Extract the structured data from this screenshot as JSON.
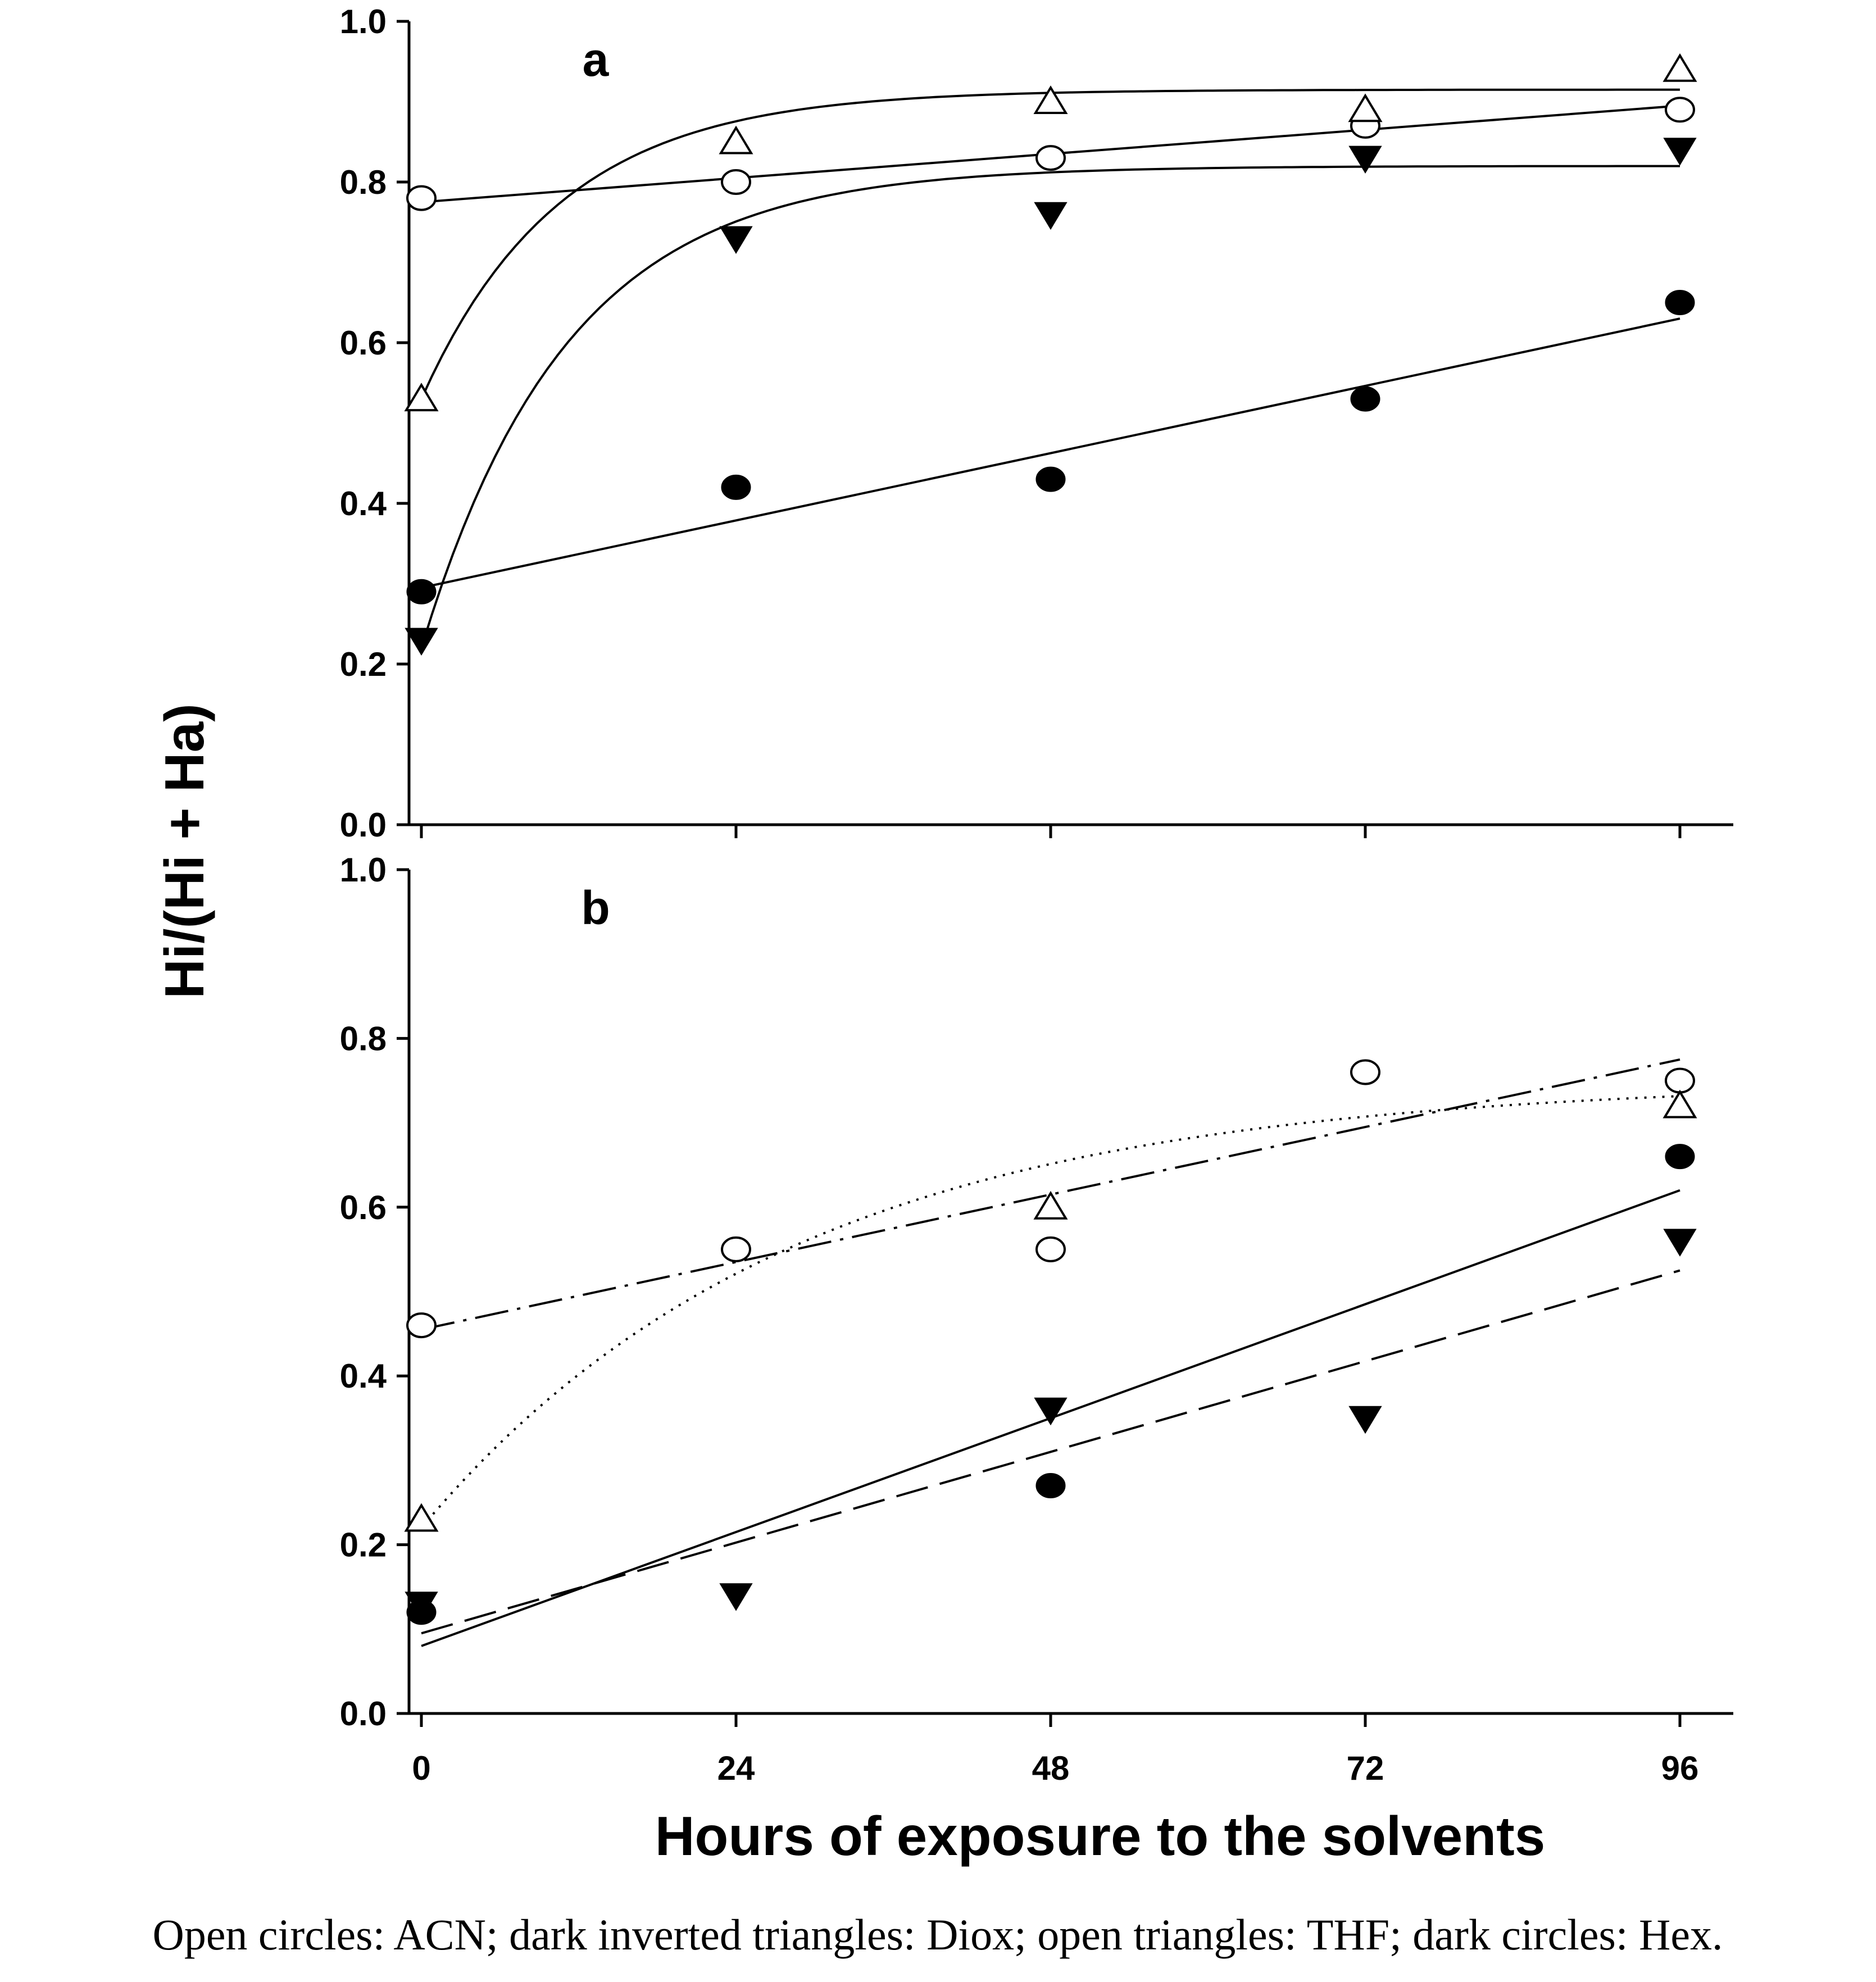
{
  "chart_data": [
    {
      "type": "scatter",
      "panel_label": "a",
      "xlabel": "Hours of exposure to the solvents",
      "ylabel": "Hi/(Hi + Ha)",
      "xlim": [
        -2,
        104
      ],
      "ylim": [
        0,
        1.0
      ],
      "x_ticks": [
        0,
        24,
        48,
        72,
        96
      ],
      "x_tick_labels": [
        "0",
        "24",
        "48",
        "72",
        "96"
      ],
      "y_ticks": [
        0.0,
        0.2,
        0.4,
        0.6,
        0.8,
        1.0
      ],
      "y_tick_labels": [
        "0.0",
        "0.2",
        "0.4",
        "0.6",
        "0.8",
        "1.0"
      ],
      "series": [
        {
          "name": "ACN",
          "marker": "open-circle",
          "x": [
            0,
            24,
            48,
            72,
            96
          ],
          "y": [
            0.78,
            0.8,
            0.83,
            0.87,
            0.89
          ],
          "fit": {
            "kind": "linear",
            "style": "solid",
            "x0": 0,
            "y0": 0.775,
            "x1": 96,
            "y1": 0.895
          }
        },
        {
          "name": "Diox",
          "marker": "dark-inverted-triangle",
          "x": [
            0,
            24,
            48,
            72,
            96
          ],
          "y": [
            0.23,
            0.73,
            0.76,
            0.83,
            0.84
          ],
          "fit": {
            "kind": "exp-rise",
            "style": "solid",
            "x_start": 0,
            "x_end": 96,
            "y0": 0.22,
            "ymax": 0.82,
            "k": 0.09
          }
        },
        {
          "name": "THF",
          "marker": "open-triangle",
          "x": [
            0,
            24,
            48,
            72,
            96
          ],
          "y": [
            0.53,
            0.85,
            0.9,
            0.89,
            0.94
          ],
          "fit": {
            "kind": "exp-rise",
            "style": "solid",
            "x_start": 0,
            "x_end": 96,
            "y0": 0.53,
            "ymax": 0.915,
            "k": 0.095
          }
        },
        {
          "name": "Hex",
          "marker": "dark-circle",
          "x": [
            0,
            24,
            48,
            72,
            96
          ],
          "y": [
            0.29,
            0.42,
            0.43,
            0.53,
            0.65
          ],
          "fit": {
            "kind": "linear",
            "style": "solid",
            "x0": 0,
            "y0": 0.295,
            "x1": 96,
            "y1": 0.63
          }
        }
      ]
    },
    {
      "type": "scatter",
      "panel_label": "b",
      "xlabel": "Hours of exposure to the solvents",
      "ylabel": "Hi/(Hi + Ha)",
      "xlim": [
        -2,
        104
      ],
      "ylim": [
        0,
        1.0
      ],
      "x_ticks": [
        0,
        24,
        48,
        72,
        96
      ],
      "x_tick_labels": [
        "0",
        "24",
        "48",
        "72",
        "96"
      ],
      "y_ticks": [
        0.0,
        0.2,
        0.4,
        0.6,
        0.8,
        1.0
      ],
      "y_tick_labels": [
        "0.0",
        "0.2",
        "0.4",
        "0.6",
        "0.8",
        "1.0"
      ],
      "series": [
        {
          "name": "ACN",
          "marker": "open-circle",
          "x": [
            0,
            24,
            48,
            72,
            96
          ],
          "y": [
            0.46,
            0.55,
            0.55,
            0.76,
            0.75
          ],
          "fit": {
            "kind": "linear",
            "style": "dash-dot",
            "x0": 0,
            "y0": 0.455,
            "x1": 96,
            "y1": 0.775
          }
        },
        {
          "name": "Diox",
          "marker": "dark-inverted-triangle",
          "x": [
            0,
            24,
            48,
            72,
            96
          ],
          "y": [
            0.13,
            0.14,
            0.36,
            0.35,
            0.56
          ],
          "fit": {
            "kind": "linear",
            "style": "long-dash",
            "x0": 0,
            "y0": 0.095,
            "x1": 96,
            "y1": 0.525
          }
        },
        {
          "name": "THF",
          "marker": "open-triangle",
          "x": [
            0,
            48,
            96
          ],
          "y": [
            0.23,
            0.6,
            0.72
          ],
          "fit": {
            "kind": "exp-rise",
            "style": "dotted",
            "x_start": 0,
            "x_end": 96,
            "y0": 0.22,
            "ymax": 0.75,
            "k": 0.035
          }
        },
        {
          "name": "Hex",
          "marker": "dark-circle",
          "x": [
            0,
            48,
            96
          ],
          "y": [
            0.12,
            0.27,
            0.66
          ],
          "fit": {
            "kind": "linear",
            "style": "solid-thick",
            "x0": 0,
            "y0": 0.08,
            "x1": 96,
            "y1": 0.62
          }
        }
      ]
    }
  ],
  "caption": "Open circles: ACN; dark inverted triangles: Diox; open triangles: THF; dark circles: Hex."
}
